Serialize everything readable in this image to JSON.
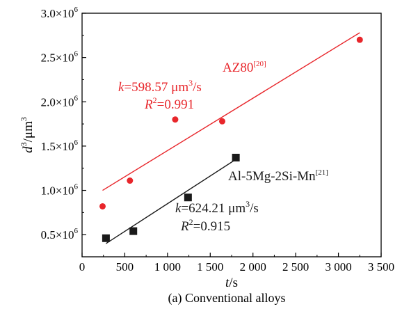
{
  "chart_data": {
    "type": "scatter",
    "title": "",
    "caption": "(a) Conventional alloys",
    "xlabel": "t/s",
    "ylabel": "d³/μm³",
    "xlim": [
      0,
      3500
    ],
    "ylim": [
      250000,
      3000000
    ],
    "x_ticks": [
      0,
      500,
      1000,
      1500,
      2000,
      2500,
      3000,
      3500
    ],
    "x_tick_labels": [
      "0",
      "500",
      "1 000",
      "1 500",
      "2 000",
      "2 500",
      "3 000",
      "3 500"
    ],
    "y_ticks": [
      500000,
      1000000,
      1500000,
      2000000,
      2500000,
      3000000
    ],
    "y_tick_labels": [
      {
        "mantissa": "0.5×10",
        "exp": "6"
      },
      {
        "mantissa": "1.0×10",
        "exp": "6"
      },
      {
        "mantissa": "1.5×10",
        "exp": "6"
      },
      {
        "mantissa": "2.0×10",
        "exp": "6"
      },
      {
        "mantissa": "2.5×10",
        "exp": "6"
      },
      {
        "mantissa": "3.0×10",
        "exp": "6"
      }
    ],
    "grid": false,
    "series": [
      {
        "name": "AZ80",
        "ref": "[20]",
        "color": "#e8262b",
        "marker": "circle",
        "points": [
          {
            "x": 240,
            "y": 820000
          },
          {
            "x": 560,
            "y": 1110000
          },
          {
            "x": 1090,
            "y": 1800000
          },
          {
            "x": 1640,
            "y": 1780000
          },
          {
            "x": 3250,
            "y": 2700000
          }
        ],
        "fit": {
          "x1": 240,
          "y1": 1000000,
          "x2": 3250,
          "y2": 2780000
        },
        "k_label": "k",
        "k_value": "=598.57 μm",
        "k_exp": "3",
        "k_unit": "/s",
        "r2_label": "R",
        "r2_exp": "2",
        "r2_value": "=0.991"
      },
      {
        "name": "Al-5Mg-2Si-Mn",
        "ref": "[21]",
        "color": "#1a1a1a",
        "marker": "square",
        "points": [
          {
            "x": 280,
            "y": 460000
          },
          {
            "x": 600,
            "y": 540000
          },
          {
            "x": 1240,
            "y": 920000
          },
          {
            "x": 1800,
            "y": 1370000
          }
        ],
        "fit": {
          "x1": 280,
          "y1": 400000,
          "x2": 1800,
          "y2": 1350000
        },
        "k_label": "k",
        "k_value": "=624.21 μm",
        "k_exp": "3",
        "k_unit": "/s",
        "r2_label": "R",
        "r2_exp": "2",
        "r2_value": "=0.915"
      }
    ]
  }
}
